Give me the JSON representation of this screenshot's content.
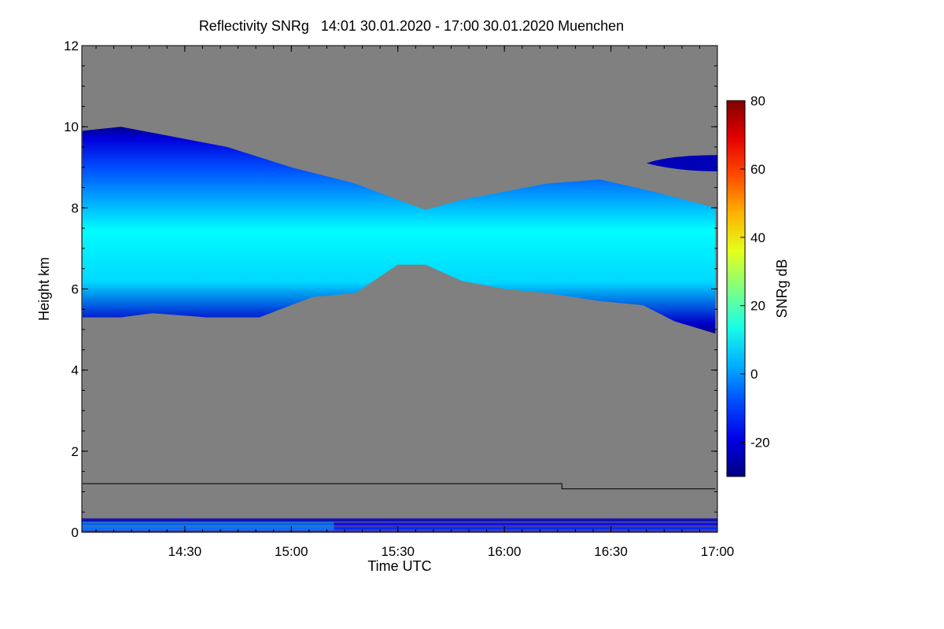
{
  "chart_data": {
    "type": "heatmap",
    "title": "Reflectivity SNRg   14:01 30.01.2020 - 17:00 30.01.2020 Muenchen",
    "xlabel": "Time UTC",
    "ylabel": "Height km",
    "xlim": [
      "14:01",
      "17:00"
    ],
    "ylim": [
      0,
      12
    ],
    "x_ticks": [
      "14:30",
      "15:00",
      "15:30",
      "16:00",
      "16:30",
      "17:00"
    ],
    "y_ticks": [
      "0",
      "2",
      "4",
      "6",
      "8",
      "10",
      "12"
    ],
    "colorbar": {
      "label": "SNRg dB",
      "range": [
        -30,
        80
      ],
      "ticks": [
        "80",
        "60",
        "40",
        "20",
        "0",
        "-20"
      ]
    },
    "cloud_layer": {
      "top_km": [
        [
          14.02,
          9.9
        ],
        [
          14.2,
          10.0
        ],
        [
          14.4,
          9.8
        ],
        [
          14.7,
          9.5
        ],
        [
          15.0,
          9.0
        ],
        [
          15.3,
          8.6
        ],
        [
          15.5,
          8.2
        ],
        [
          15.63,
          7.95
        ],
        [
          15.8,
          8.2
        ],
        [
          16.0,
          8.4
        ],
        [
          16.2,
          8.6
        ],
        [
          16.45,
          8.7
        ],
        [
          16.7,
          8.4
        ],
        [
          16.99,
          8.0
        ]
      ],
      "base_km": [
        [
          14.02,
          5.3
        ],
        [
          14.2,
          5.3
        ],
        [
          14.35,
          5.4
        ],
        [
          14.6,
          5.3
        ],
        [
          14.85,
          5.3
        ],
        [
          15.1,
          5.8
        ],
        [
          15.3,
          5.9
        ],
        [
          15.5,
          6.6
        ],
        [
          15.63,
          6.6
        ],
        [
          15.8,
          6.2
        ],
        [
          16.0,
          6.0
        ],
        [
          16.2,
          5.9
        ],
        [
          16.45,
          5.7
        ],
        [
          16.65,
          5.6
        ],
        [
          16.8,
          5.2
        ],
        [
          16.99,
          4.9
        ]
      ],
      "peak_snr_db": 15
    },
    "upper_layer": {
      "x_range": [
        "16:40",
        "17:00"
      ],
      "height_km": [
        8.9,
        9.3
      ]
    },
    "reference_line": [
      [
        14.02,
        1.2
      ],
      [
        16.27,
        1.2
      ],
      [
        16.27,
        1.07
      ],
      [
        16.99,
        1.07
      ]
    ],
    "background_color": "#808080"
  }
}
